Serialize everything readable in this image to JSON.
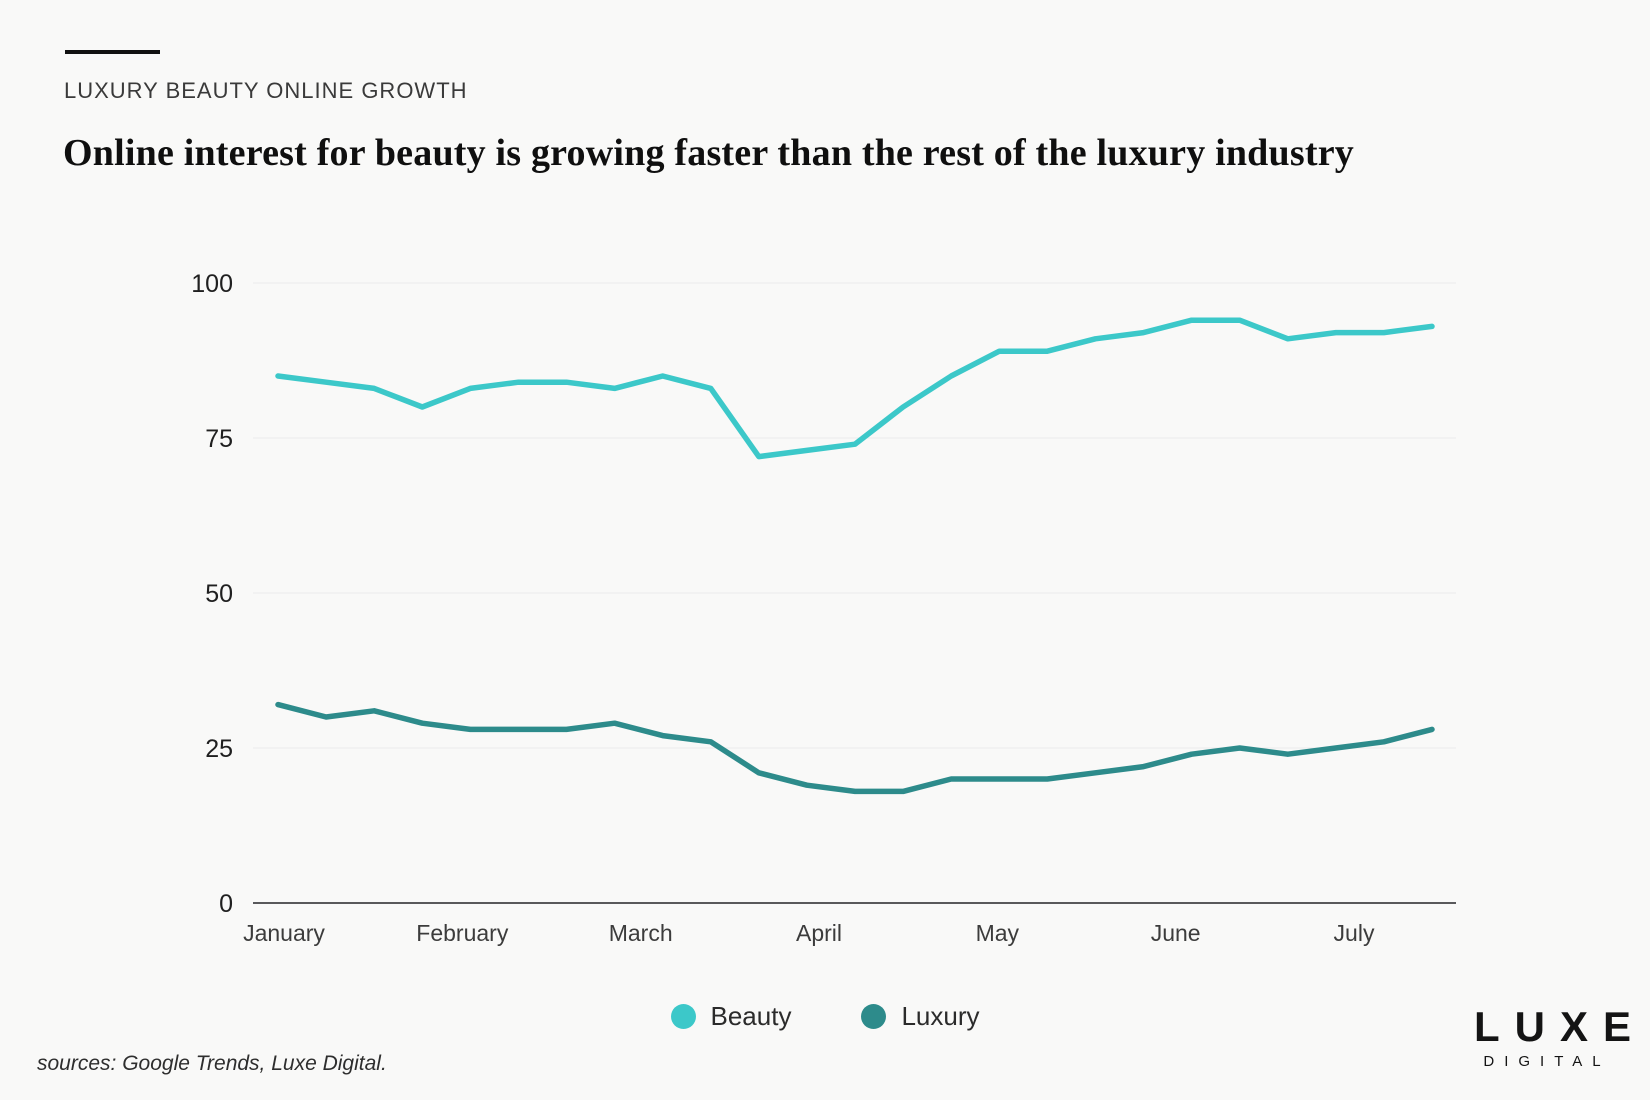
{
  "header": {
    "kicker": "LUXURY BEAUTY ONLINE GROWTH",
    "title": "Online interest for beauty is growing faster than the rest of the luxury industry"
  },
  "chart_data": {
    "type": "line",
    "title": "Online interest for beauty is growing faster than the rest of the luxury industry",
    "xlabel": "",
    "ylabel": "",
    "x_axis_months": [
      "January",
      "February",
      "March",
      "April",
      "May",
      "June",
      "July"
    ],
    "y_ticks": [
      100,
      75,
      50,
      25,
      0
    ],
    "ylim": [
      0,
      100
    ],
    "grid": "horizontal-only",
    "legend_position": "bottom-center",
    "points_per_series": 25,
    "series": [
      {
        "name": "Beauty",
        "color": "#3cc8c9",
        "values": [
          85,
          84,
          83,
          80,
          83,
          84,
          84,
          83,
          85,
          83,
          72,
          73,
          74,
          80,
          85,
          89,
          89,
          91,
          92,
          94,
          94,
          91,
          92,
          92,
          93
        ]
      },
      {
        "name": "Luxury",
        "color": "#2d8b8b",
        "values": [
          32,
          30,
          31,
          29,
          28,
          28,
          28,
          29,
          27,
          26,
          21,
          19,
          18,
          18,
          20,
          20,
          20,
          21,
          22,
          24,
          25,
          24,
          25,
          26,
          28
        ]
      }
    ],
    "axis_color": "#59595b",
    "gridline_color": "#ebebeb"
  },
  "legend": {
    "items": [
      {
        "label": "Beauty",
        "color": "#3cc8c9"
      },
      {
        "label": "Luxury",
        "color": "#2d8b8b"
      }
    ]
  },
  "footer": {
    "sources": "sources: Google Trends, Luxe Digital."
  },
  "logo": {
    "line1": "LUXE",
    "line2": "DIGITAL"
  }
}
